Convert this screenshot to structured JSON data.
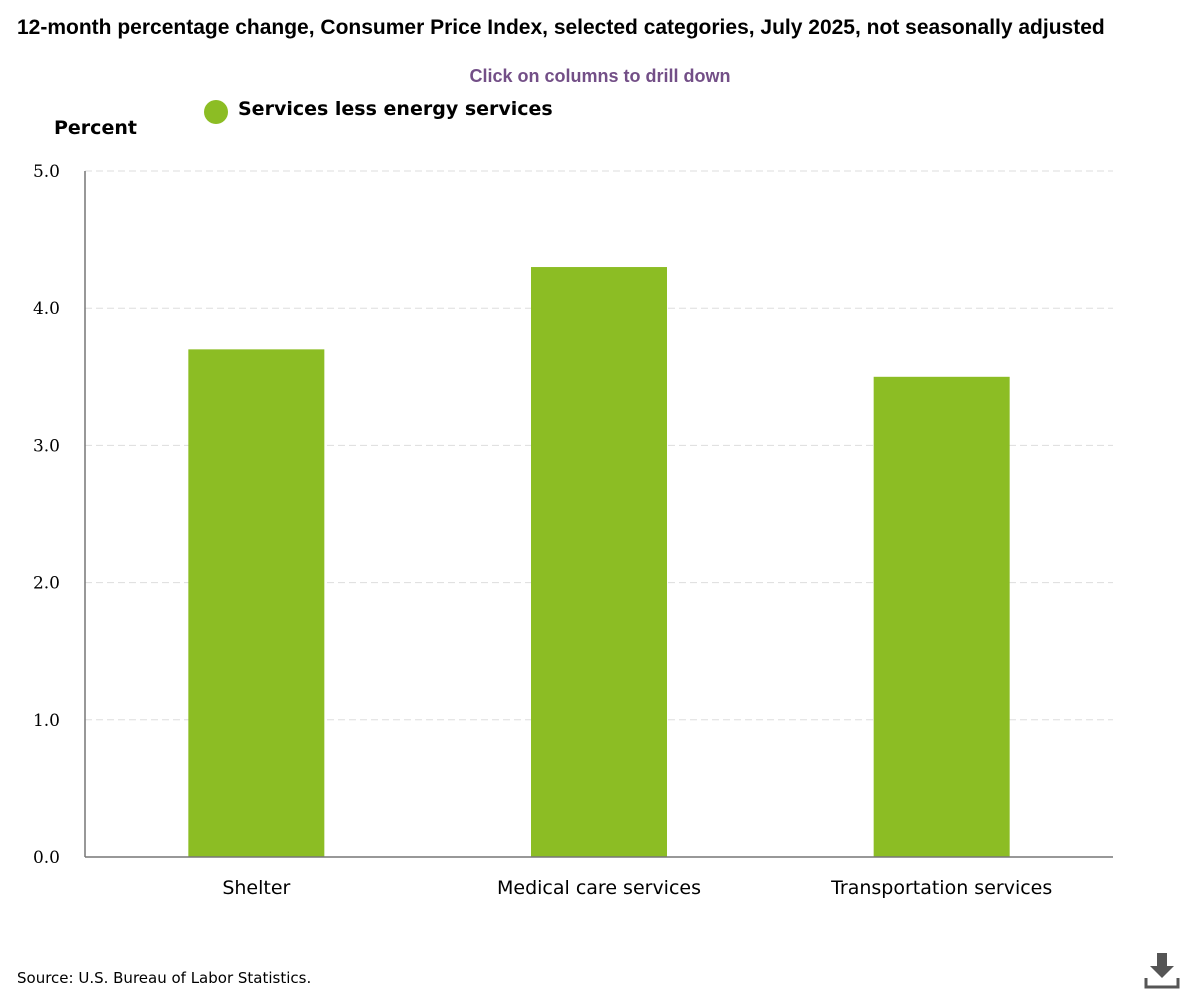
{
  "header": {
    "title": "12-month percentage change, Consumer Price Index, selected categories, July 2025, not seasonally adjusted",
    "drill_hint": "Click on columns to drill down"
  },
  "footer": {
    "source": "Source: U.S. Bureau of Labor Statistics.",
    "download_icon": "download-icon"
  },
  "colors": {
    "bar": "#8cbd24",
    "hint": "#734f87"
  },
  "chart_data": {
    "type": "bar",
    "title": "12-month percentage change, Consumer Price Index, selected categories, July 2025, not seasonally adjusted",
    "ylabel": "Percent",
    "xlabel": "",
    "categories": [
      "Shelter",
      "Medical care services",
      "Transportation services"
    ],
    "series": [
      {
        "name": "Services less energy services",
        "values": [
          3.7,
          4.3,
          3.5
        ]
      }
    ],
    "ylim": [
      0,
      5
    ],
    "yticks": [
      "0.0",
      "1.0",
      "2.0",
      "3.0",
      "4.0",
      "5.0"
    ],
    "grid": true,
    "legend": "top-left"
  }
}
